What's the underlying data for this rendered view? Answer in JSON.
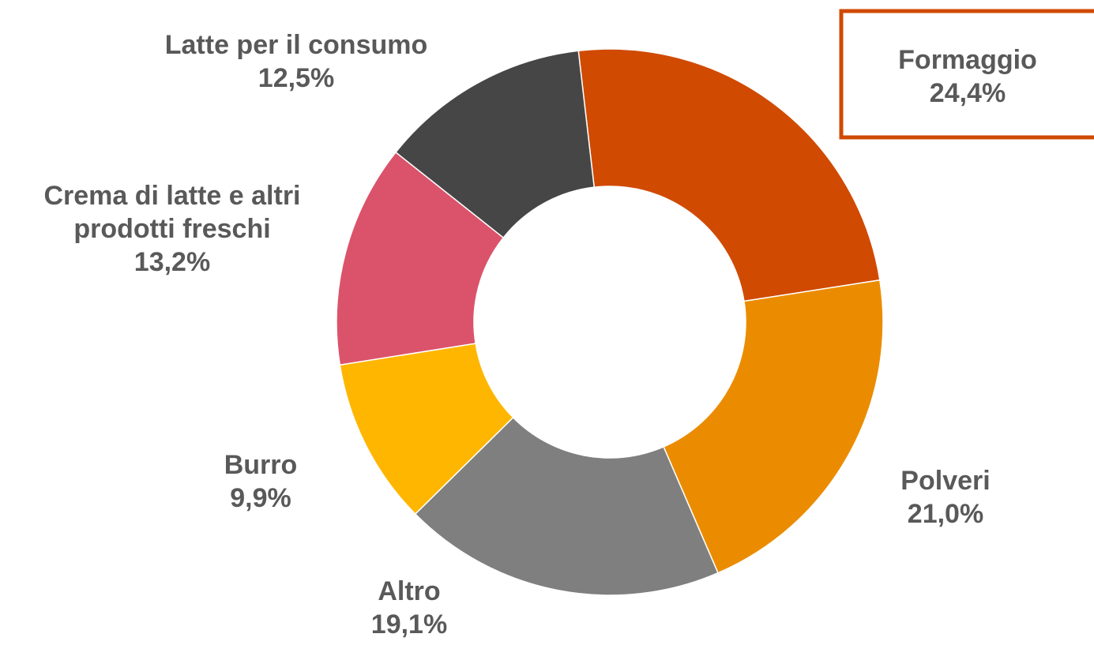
{
  "chart_data": {
    "type": "donut",
    "categories": [
      "Formaggio",
      "Polveri",
      "Altro",
      "Burro",
      "Crema di latte e altri prodotti freschi",
      "Latte per il consumo"
    ],
    "values": [
      24.4,
      21.0,
      19.1,
      9.9,
      13.2,
      12.5
    ],
    "value_labels": [
      "24,4%",
      "21,0%",
      "19,1%",
      "9,9%",
      "13,2%",
      "12,5%"
    ],
    "colors": [
      "#d04a02",
      "#eb8c00",
      "#7f7f7f",
      "#ffb600",
      "#db536a",
      "#464646"
    ]
  }
}
